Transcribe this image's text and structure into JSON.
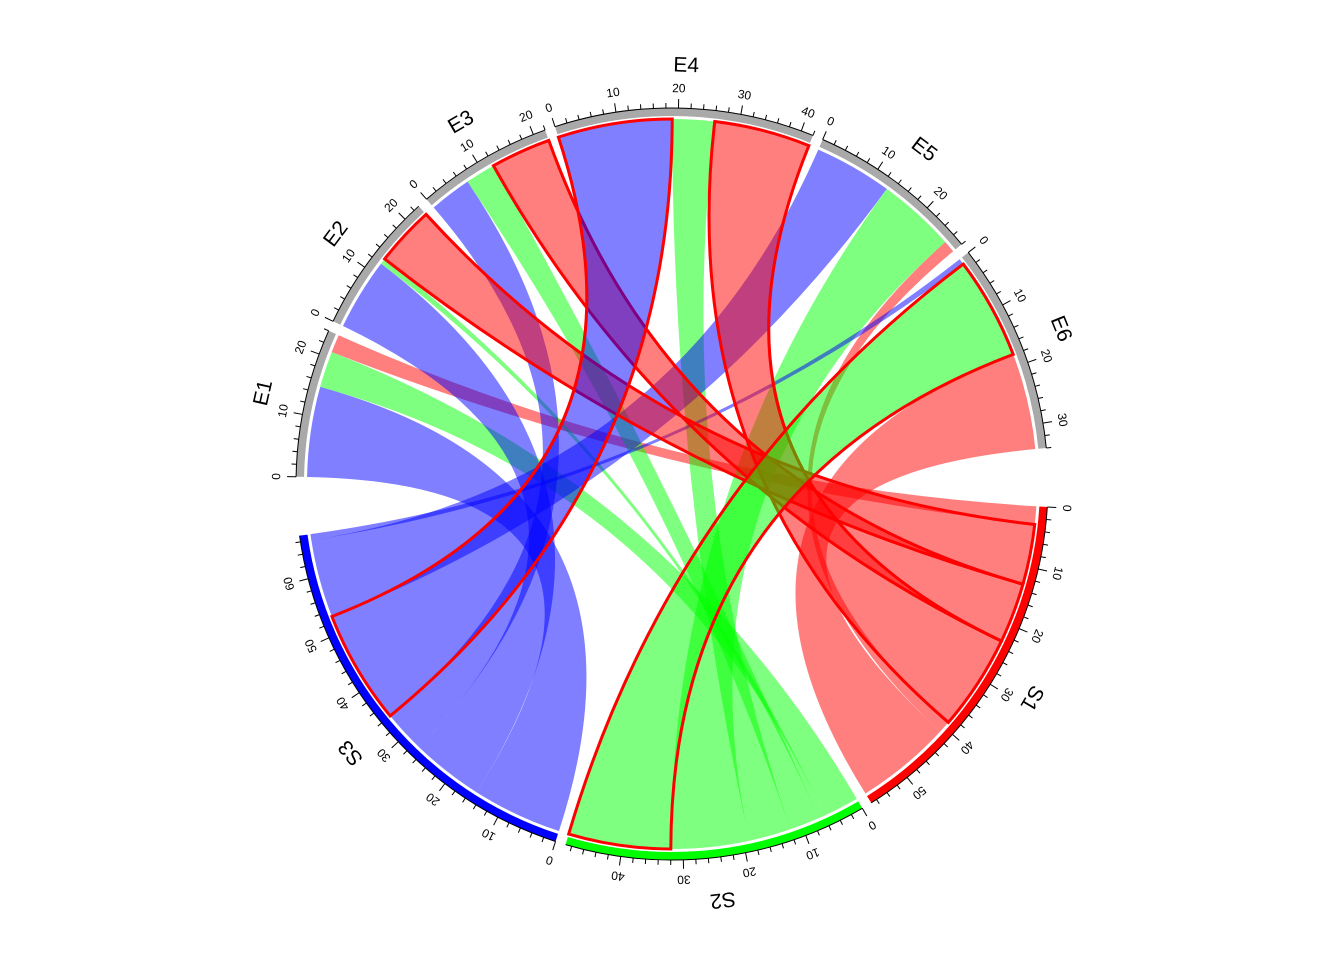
{
  "chart_data": {
    "type": "chord",
    "title": "",
    "sectors": [
      {
        "name": "S1",
        "length": 57,
        "color": "#ff0000"
      },
      {
        "name": "S2",
        "length": 49,
        "color": "#00ff00"
      },
      {
        "name": "S3",
        "length": 67,
        "color": "#0000ff"
      },
      {
        "name": "E1",
        "length": 24,
        "color": "#a9a9a9"
      },
      {
        "name": "E2",
        "length": 23,
        "color": "#a9a9a9"
      },
      {
        "name": "E3",
        "length": 22,
        "color": "#a9a9a9"
      },
      {
        "name": "E4",
        "length": 42,
        "color": "#a9a9a9"
      },
      {
        "name": "E5",
        "length": 28,
        "color": "#a9a9a9"
      },
      {
        "name": "E6",
        "length": 34,
        "color": "#a9a9a9"
      }
    ],
    "links": [
      {
        "from": "S1",
        "to": "E1",
        "value": 3,
        "highlight": false
      },
      {
        "from": "S1",
        "to": "E2",
        "value": 10,
        "highlight": true
      },
      {
        "from": "S1",
        "to": "E3",
        "value": 10,
        "highlight": true
      },
      {
        "from": "S1",
        "to": "E4",
        "value": 16,
        "highlight": true
      },
      {
        "from": "S1",
        "to": "E5",
        "value": 2,
        "highlight": false
      },
      {
        "from": "S1",
        "to": "E6",
        "value": 16,
        "highlight": false
      },
      {
        "from": "S2",
        "to": "E1",
        "value": 6,
        "highlight": false
      },
      {
        "from": "S2",
        "to": "E2",
        "value": 1,
        "highlight": false
      },
      {
        "from": "S2",
        "to": "E3",
        "value": 5,
        "highlight": false
      },
      {
        "from": "S2",
        "to": "E4",
        "value": 7,
        "highlight": false
      },
      {
        "from": "S2",
        "to": "E5",
        "value": 13,
        "highlight": false
      },
      {
        "from": "S2",
        "to": "E6",
        "value": 17,
        "highlight": true
      },
      {
        "from": "S3",
        "to": "E1",
        "value": 15,
        "highlight": false
      },
      {
        "from": "S3",
        "to": "E2",
        "value": 12,
        "highlight": false
      },
      {
        "from": "S3",
        "to": "E3",
        "value": 7,
        "highlight": false
      },
      {
        "from": "S3",
        "to": "E4",
        "value": 19,
        "highlight": true
      },
      {
        "from": "S3",
        "to": "E5",
        "value": 13,
        "highlight": false
      },
      {
        "from": "S3",
        "to": "E6",
        "value": 1,
        "highlight": false
      }
    ],
    "highlight_border_color": "#ff0000",
    "tick_interval_minor": 2,
    "tick_interval_label": 10,
    "grid": false,
    "legend": "none"
  }
}
